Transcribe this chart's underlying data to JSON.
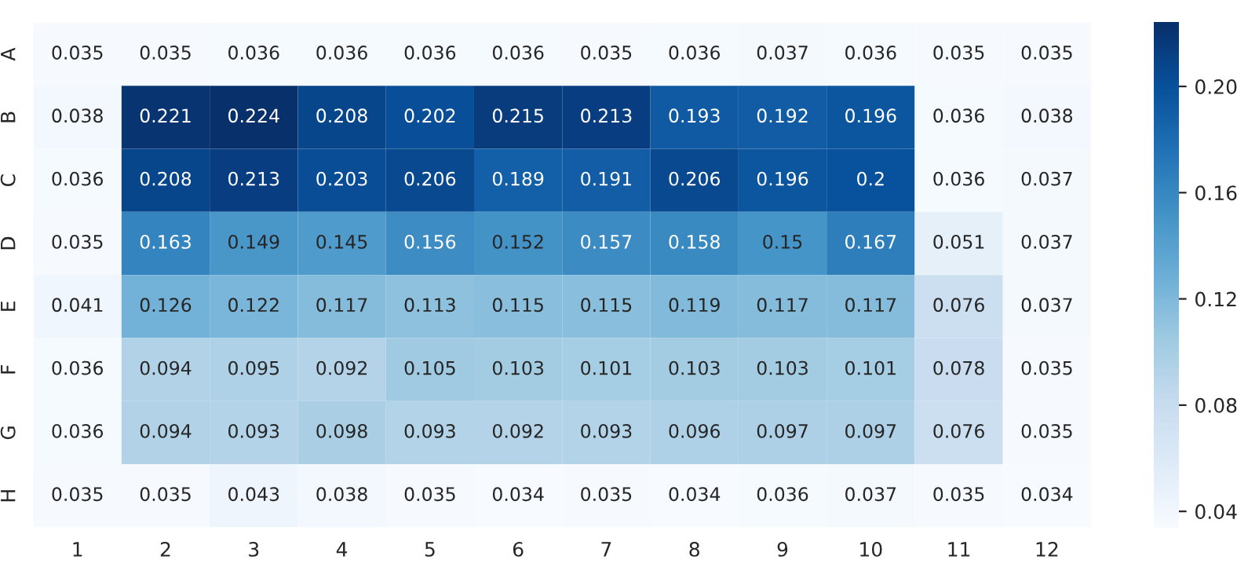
{
  "chart_data": {
    "type": "heatmap",
    "categories": [
      "1",
      "2",
      "3",
      "4",
      "5",
      "6",
      "7",
      "8",
      "9",
      "10",
      "11",
      "12"
    ],
    "y_categories": [
      "A",
      "B",
      "C",
      "D",
      "E",
      "F",
      "G",
      "H"
    ],
    "cells": [
      [
        0.035,
        0.035,
        0.036,
        0.036,
        0.036,
        0.036,
        0.035,
        0.036,
        0.037,
        0.036,
        0.035,
        0.035
      ],
      [
        0.038,
        0.221,
        0.224,
        0.208,
        0.202,
        0.215,
        0.213,
        0.193,
        0.192,
        0.196,
        0.036,
        0.038
      ],
      [
        0.036,
        0.208,
        0.213,
        0.203,
        0.206,
        0.189,
        0.191,
        0.206,
        0.196,
        0.2,
        0.036,
        0.037
      ],
      [
        0.035,
        0.163,
        0.149,
        0.145,
        0.156,
        0.152,
        0.157,
        0.158,
        0.15,
        0.167,
        0.051,
        0.037
      ],
      [
        0.041,
        0.126,
        0.122,
        0.117,
        0.113,
        0.115,
        0.115,
        0.119,
        0.117,
        0.117,
        0.076,
        0.037
      ],
      [
        0.036,
        0.094,
        0.095,
        0.092,
        0.105,
        0.103,
        0.101,
        0.103,
        0.103,
        0.101,
        0.078,
        0.035
      ],
      [
        0.036,
        0.094,
        0.093,
        0.098,
        0.093,
        0.092,
        0.093,
        0.096,
        0.097,
        0.097,
        0.076,
        0.035
      ],
      [
        0.035,
        0.035,
        0.043,
        0.038,
        0.035,
        0.034,
        0.035,
        0.034,
        0.036,
        0.037,
        0.035,
        0.034
      ]
    ],
    "clim": [
      0.034,
      0.224
    ],
    "cticks": [
      {
        "value": 0.04,
        "label": "0.04"
      },
      {
        "value": 0.08,
        "label": "0.08"
      },
      {
        "value": 0.12,
        "label": "0.12"
      },
      {
        "value": 0.16,
        "label": "0.16"
      },
      {
        "value": 0.2,
        "label": "0.20"
      }
    ],
    "data_labels": true
  }
}
